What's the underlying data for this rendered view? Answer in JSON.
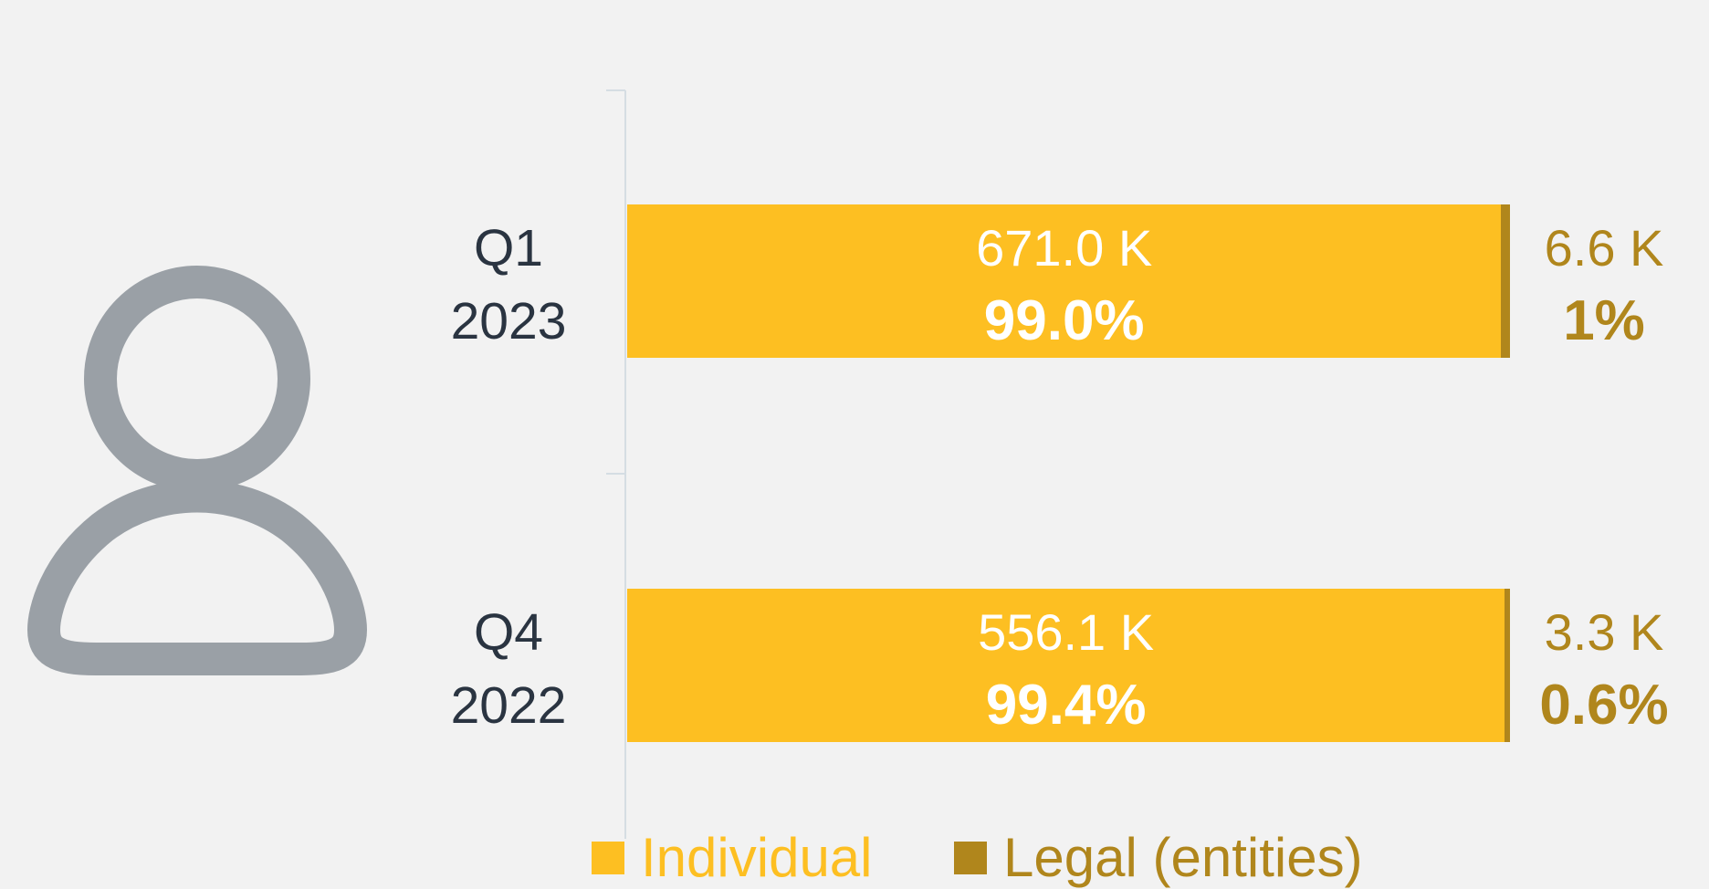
{
  "chart_data": {
    "type": "stacked-bar",
    "orientation": "horizontal",
    "categories": [
      "Q1\n2023",
      "Q4\n2022"
    ],
    "xlim": [
      0,
      100
    ],
    "series": [
      {
        "name": "Individual",
        "color": "#fdbf22",
        "values": [
          99.0,
          99.4
        ],
        "value_labels": [
          "99.0%",
          "99.4%"
        ],
        "count_labels": [
          "671.0 K",
          "556.1 K"
        ]
      },
      {
        "name": "Legal (entities)",
        "color": "#b0861c",
        "values": [
          1,
          0.6
        ],
        "value_labels": [
          "1%",
          "0.6%"
        ],
        "count_labels": [
          "6.6 K",
          "3.3 K"
        ]
      }
    ],
    "legend": "bottom"
  }
}
